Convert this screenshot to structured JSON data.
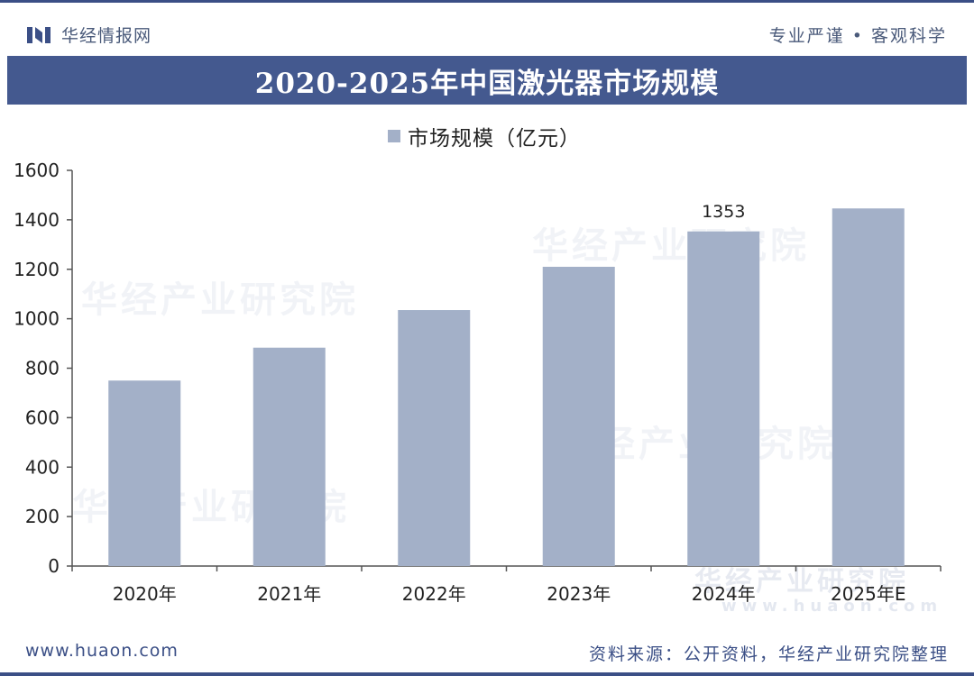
{
  "header": {
    "brand_name": "华经情报网",
    "slogan": "专业严谨 • 客观科学"
  },
  "title": "2020-2025年中国激光器市场规模",
  "legend_label": "市场规模（亿元）",
  "footer": {
    "url": "www.huaon.com",
    "source": "资料来源：公开资料，华经产业研究院整理"
  },
  "watermarks": {
    "text": "华经产业研究院",
    "url": "www.huaon.com"
  },
  "colors": {
    "brand": "#3b4f86",
    "title_band": "#44598f",
    "bar": "#a3b0c8"
  },
  "chart_data": {
    "type": "bar",
    "title": "2020-2025年中国激光器市场规模",
    "categories": [
      "2020年",
      "2021年",
      "2022年",
      "2023年",
      "2024年",
      "2025年E"
    ],
    "series": [
      {
        "name": "市场规模（亿元）",
        "values": [
          750,
          883,
          1035,
          1210,
          1353,
          1446
        ]
      }
    ],
    "data_labels": [
      {
        "category": "2024年",
        "text": "1353"
      }
    ],
    "ylim": [
      0,
      1600
    ],
    "yticks": [
      0,
      200,
      400,
      600,
      800,
      1000,
      1200,
      1400,
      1600
    ],
    "grid": false,
    "legend_position": "top-center"
  }
}
